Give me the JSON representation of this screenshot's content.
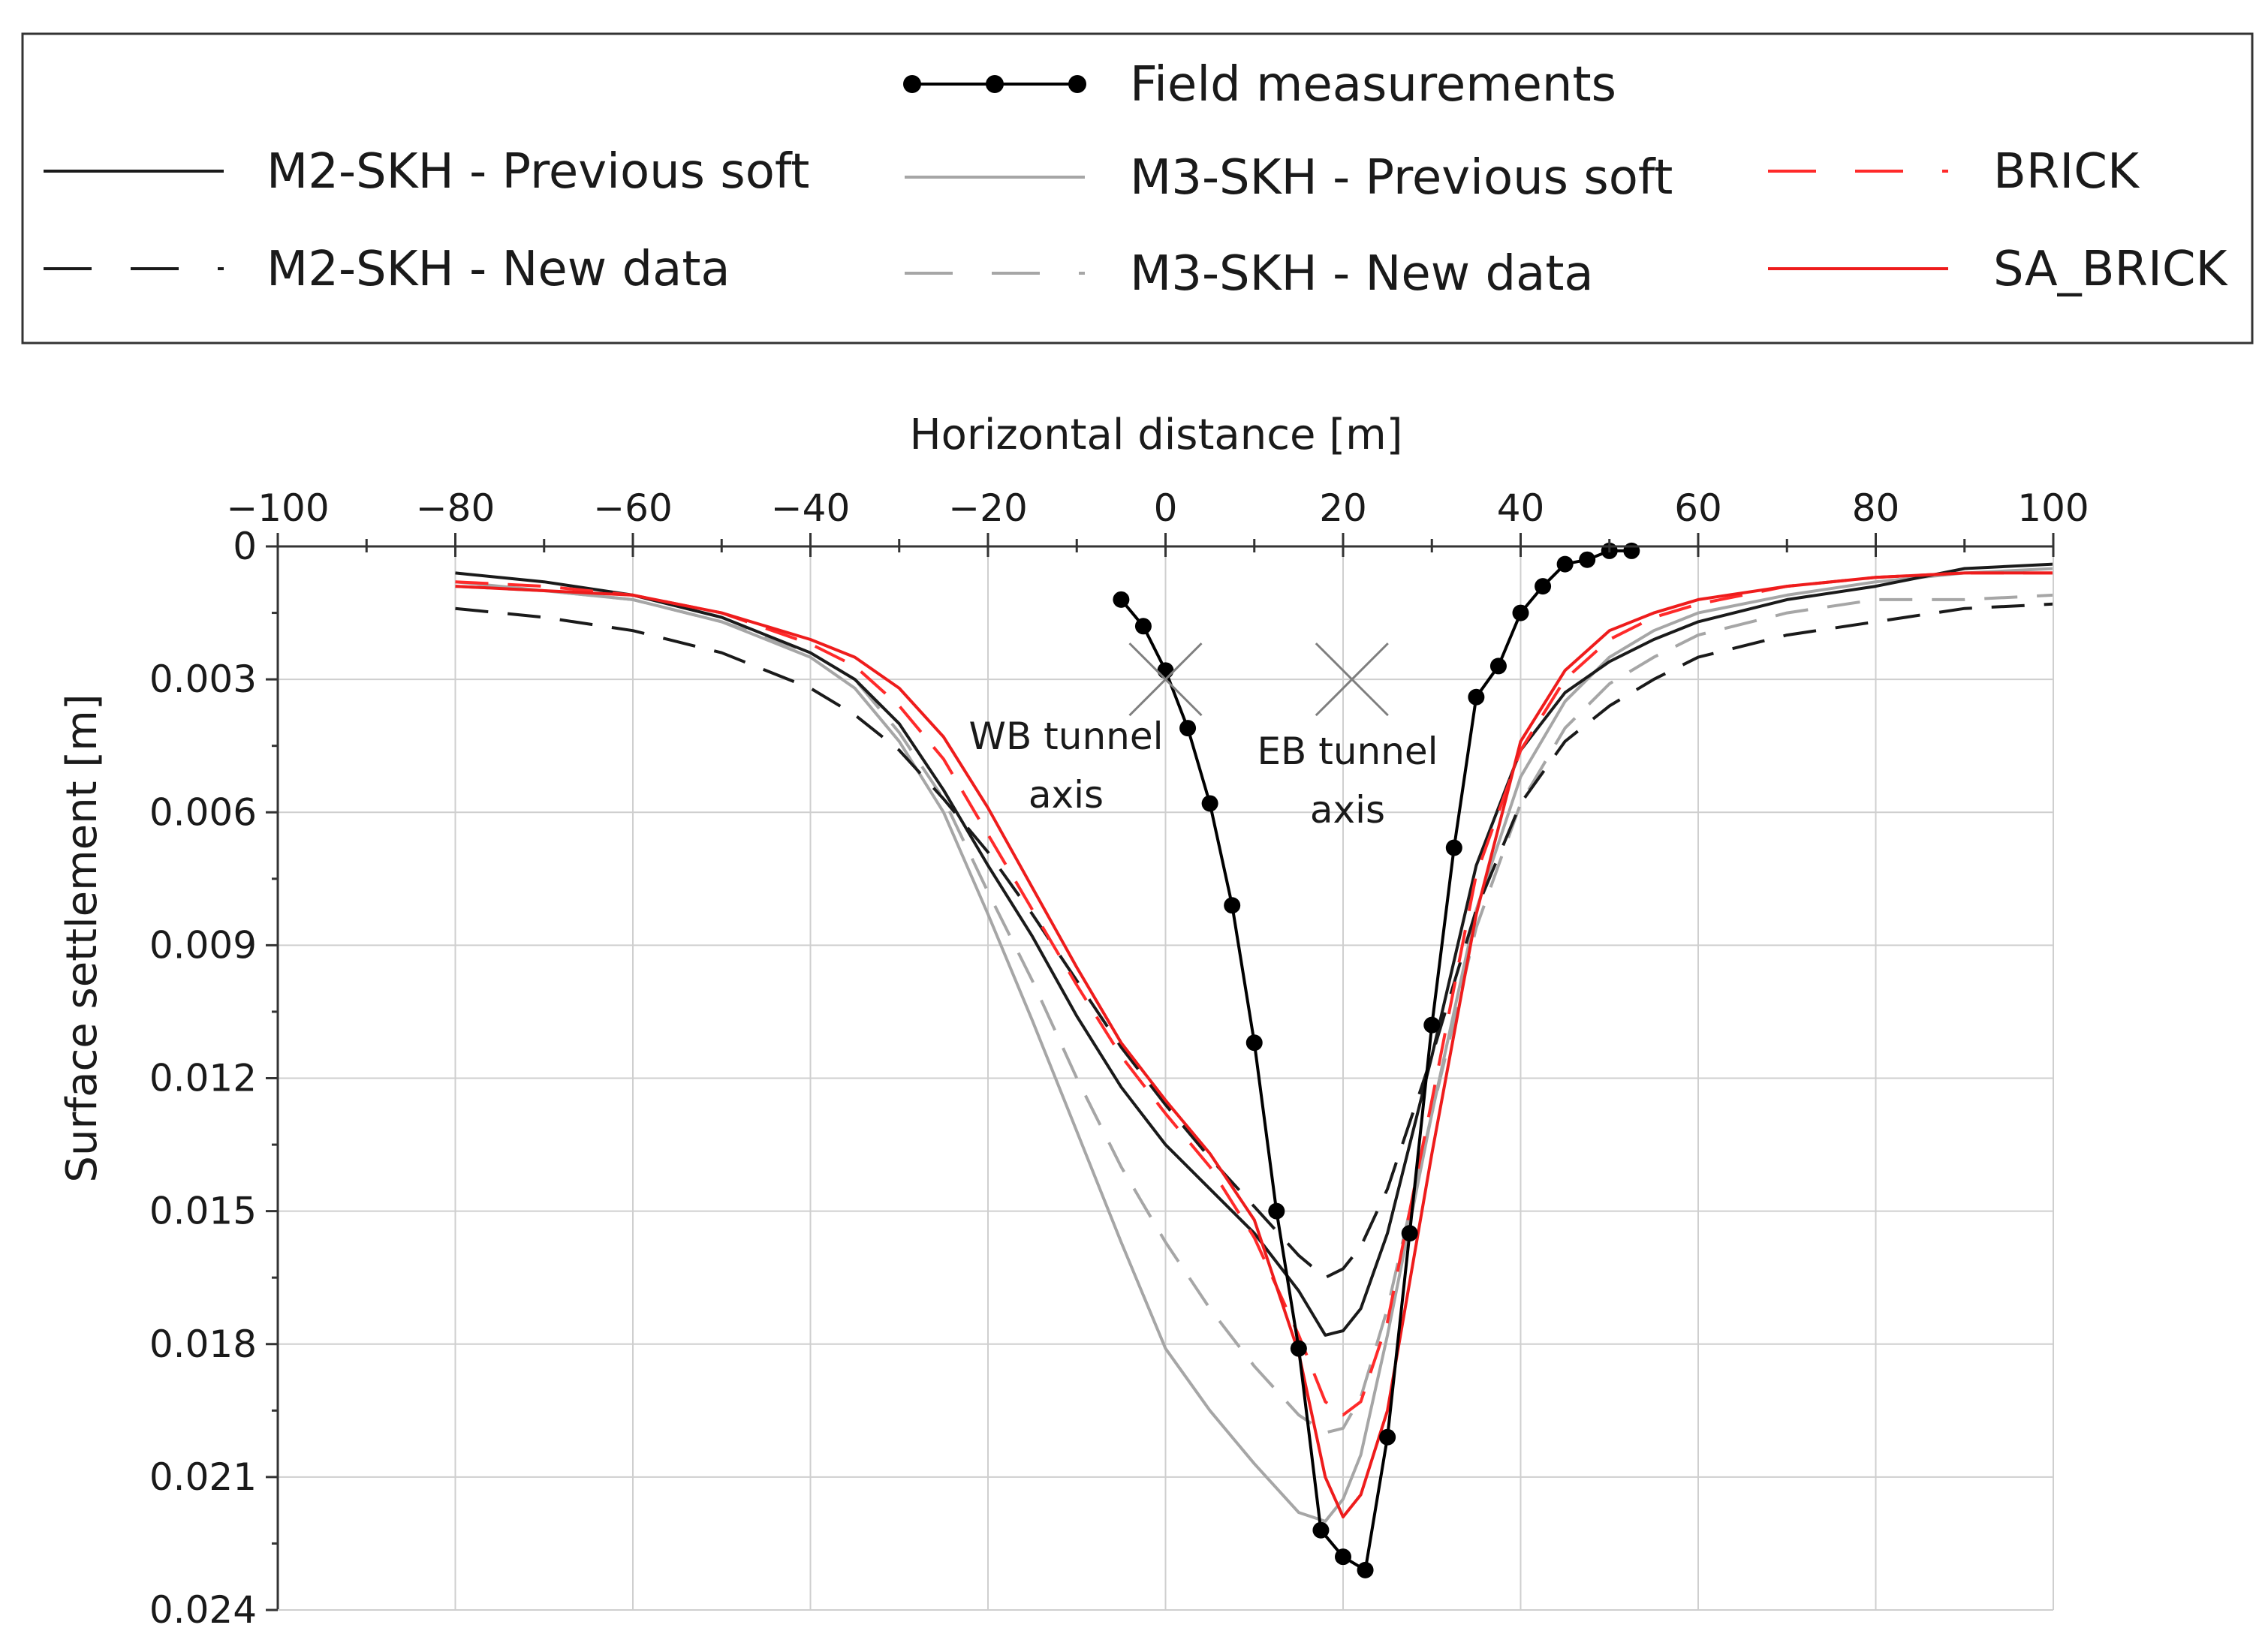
{
  "chart_data": {
    "type": "line",
    "title": "",
    "xlabel": "Horizontal distance [m]",
    "ylabel": "Surface settlement [m]",
    "xlim": [
      -100,
      100
    ],
    "ylim": [
      0,
      0.024
    ],
    "y_inverted": true,
    "x_ticks": [
      -100,
      -80,
      -60,
      -40,
      -20,
      0,
      20,
      40,
      60,
      80,
      100
    ],
    "x_tick_labels": [
      "−100",
      "−80",
      "−60",
      "−40",
      "−20",
      "0",
      "20",
      "40",
      "60",
      "80",
      "100"
    ],
    "y_ticks": [
      0,
      0.003,
      0.006,
      0.009,
      0.012,
      0.015,
      0.018,
      0.021,
      0.024
    ],
    "y_tick_labels": [
      "0",
      "0.003",
      "0.006",
      "0.009",
      "0.012",
      "0.015",
      "0.018",
      "0.021",
      "0.024"
    ],
    "grid": true,
    "legend_position": "top, above plot",
    "series": [
      {
        "name": "Field measurements",
        "color": "#000000",
        "style": "solid-markers",
        "x": [
          -5,
          -2.5,
          0,
          2.5,
          5,
          7.5,
          10,
          12.5,
          15,
          17.5,
          20,
          22.5,
          25,
          27.5,
          30,
          32.5,
          35,
          37.5,
          40,
          42.5,
          45,
          47.5,
          50,
          52.5
        ],
        "y": [
          0.0012,
          0.0018,
          0.0028,
          0.0041,
          0.0058,
          0.0081,
          0.0112,
          0.015,
          0.0181,
          0.0222,
          0.0228,
          0.0231,
          0.0201,
          0.0155,
          0.0108,
          0.0068,
          0.0034,
          0.0027,
          0.0015,
          0.0009,
          0.0004,
          0.0003,
          0.0001,
          0.0001
        ]
      },
      {
        "name": "M2-SKH - Previous soft",
        "color": "#1a1a1a",
        "style": "solid",
        "x": [
          -80,
          -70,
          -60,
          -50,
          -40,
          -35,
          -30,
          -25,
          -20,
          -15,
          -10,
          -5,
          0,
          5,
          10,
          15,
          18,
          20,
          22,
          25,
          30,
          35,
          40,
          45,
          50,
          55,
          60,
          70,
          80,
          90,
          100
        ],
        "y": [
          0.0006,
          0.0008,
          0.0011,
          0.0016,
          0.0024,
          0.003,
          0.004,
          0.0055,
          0.0072,
          0.0088,
          0.0106,
          0.0122,
          0.0135,
          0.0145,
          0.0155,
          0.0168,
          0.0178,
          0.0177,
          0.0172,
          0.0155,
          0.0115,
          0.0072,
          0.0046,
          0.0033,
          0.0026,
          0.0021,
          0.0017,
          0.0012,
          0.0009,
          0.0005,
          0.0004
        ]
      },
      {
        "name": "M2-SKH - New data",
        "color": "#1a1a1a",
        "style": "dashed",
        "x": [
          -80,
          -70,
          -60,
          -50,
          -40,
          -35,
          -30,
          -25,
          -20,
          -15,
          -10,
          -5,
          0,
          5,
          10,
          15,
          18,
          20,
          22,
          25,
          30,
          35,
          40,
          45,
          50,
          55,
          60,
          70,
          80,
          90,
          100
        ],
        "y": [
          0.0014,
          0.0016,
          0.0019,
          0.0024,
          0.0032,
          0.0038,
          0.0046,
          0.0057,
          0.0069,
          0.0083,
          0.0098,
          0.0113,
          0.0126,
          0.0138,
          0.0149,
          0.016,
          0.0165,
          0.0163,
          0.0158,
          0.0145,
          0.0115,
          0.0082,
          0.0058,
          0.0044,
          0.0036,
          0.003,
          0.0025,
          0.002,
          0.0017,
          0.0014,
          0.0013
        ]
      },
      {
        "name": "M3-SKH - Previous soft",
        "color": "#a6a6a6",
        "style": "solid",
        "x": [
          -80,
          -70,
          -60,
          -50,
          -40,
          -35,
          -30,
          -25,
          -20,
          -15,
          -10,
          -5,
          0,
          5,
          10,
          15,
          18,
          20,
          22,
          25,
          30,
          35,
          40,
          45,
          50,
          55,
          60,
          70,
          80,
          90,
          100
        ],
        "y": [
          0.0008,
          0.001,
          0.0012,
          0.0017,
          0.0025,
          0.0032,
          0.0044,
          0.006,
          0.0083,
          0.0107,
          0.0132,
          0.0157,
          0.0181,
          0.0195,
          0.0207,
          0.0218,
          0.022,
          0.0215,
          0.0205,
          0.0178,
          0.0128,
          0.0082,
          0.0052,
          0.0035,
          0.0025,
          0.0019,
          0.0015,
          0.0011,
          0.0008,
          0.0006,
          0.0005
        ]
      },
      {
        "name": "M3-SKH - New data",
        "color": "#a6a6a6",
        "style": "dashed",
        "x": [
          -80,
          -70,
          -60,
          -50,
          -40,
          -35,
          -30,
          -25,
          -20,
          -15,
          -10,
          -5,
          0,
          5,
          10,
          15,
          18,
          20,
          22,
          25,
          30,
          35,
          40,
          45,
          50,
          55,
          60,
          70,
          80,
          90,
          100
        ],
        "y": [
          0.0009,
          0.001,
          0.0012,
          0.0017,
          0.0024,
          0.003,
          0.0042,
          0.0057,
          0.0078,
          0.0098,
          0.012,
          0.014,
          0.0157,
          0.0172,
          0.0185,
          0.0196,
          0.02,
          0.0199,
          0.0192,
          0.0172,
          0.0128,
          0.0086,
          0.0058,
          0.0041,
          0.0031,
          0.0025,
          0.002,
          0.0015,
          0.0012,
          0.0012,
          0.0011
        ]
      },
      {
        "name": "BRICK",
        "color": "#ff2a2a",
        "style": "dashed",
        "x": [
          -80,
          -70,
          -60,
          -50,
          -40,
          -35,
          -30,
          -25,
          -20,
          -15,
          -10,
          -5,
          0,
          5,
          10,
          15,
          18,
          20,
          22,
          25,
          30,
          35,
          40,
          45,
          50,
          55,
          60,
          70,
          80,
          90,
          100
        ],
        "y": [
          0.0008,
          0.0009,
          0.0011,
          0.0015,
          0.0022,
          0.0027,
          0.0036,
          0.0048,
          0.0065,
          0.0082,
          0.0099,
          0.0115,
          0.0128,
          0.014,
          0.0156,
          0.0178,
          0.0193,
          0.0196,
          0.0193,
          0.0175,
          0.0125,
          0.0074,
          0.0046,
          0.003,
          0.0021,
          0.0016,
          0.0013,
          0.0009,
          0.0007,
          0.0006,
          0.0006
        ]
      },
      {
        "name": "SA_BRICK",
        "color": "#ee1c1c",
        "style": "solid",
        "x": [
          -80,
          -70,
          -60,
          -50,
          -40,
          -35,
          -30,
          -25,
          -20,
          -15,
          -10,
          -5,
          0,
          5,
          10,
          15,
          18,
          20,
          22,
          25,
          30,
          35,
          40,
          45,
          50,
          55,
          60,
          70,
          80,
          90,
          100
        ],
        "y": [
          0.0009,
          0.001,
          0.0011,
          0.0015,
          0.0021,
          0.0025,
          0.0032,
          0.0043,
          0.0059,
          0.0077,
          0.0095,
          0.0112,
          0.0125,
          0.0137,
          0.0152,
          0.0182,
          0.021,
          0.0219,
          0.0214,
          0.0195,
          0.0137,
          0.0083,
          0.0044,
          0.0028,
          0.0019,
          0.0015,
          0.0012,
          0.0009,
          0.0007,
          0.0006,
          0.0006
        ]
      }
    ],
    "annotations": [
      {
        "text": [
          "WB tunnel",
          "axis"
        ],
        "marker_x": 0,
        "marker_y": 0.003
      },
      {
        "text": [
          "EB tunnel",
          "axis"
        ],
        "marker_x": 21,
        "marker_y": 0.003
      }
    ]
  }
}
